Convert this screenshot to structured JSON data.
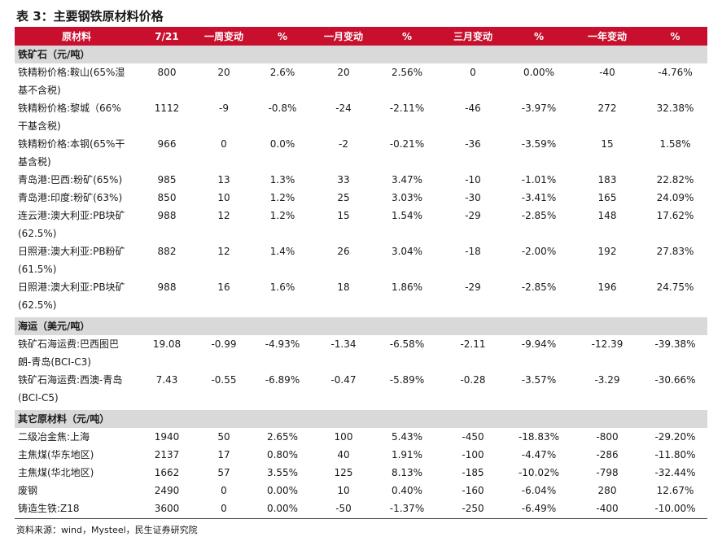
{
  "title": "表 3：主要钢铁原材料价格",
  "headers": [
    "原材料",
    "7/21",
    "一周变动",
    "%",
    "一月变动",
    "%",
    "三月变动",
    "%",
    "一年变动",
    "%"
  ],
  "sections": [
    {
      "name": "铁矿石（元/吨）",
      "rows": [
        {
          "name_lines": [
            "铁精粉价格:鞍山(65%湿",
            "基不含税)"
          ],
          "values": [
            "800",
            "20",
            "2.6%",
            "20",
            "2.56%",
            "0",
            "0.00%",
            "-40",
            "-4.76%"
          ]
        },
        {
          "name_lines": [
            "铁精粉价格:黎城（66%",
            "干基含税)"
          ],
          "values": [
            "1112",
            "-9",
            "-0.8%",
            "-24",
            "-2.11%",
            "-46",
            "-3.97%",
            "272",
            "32.38%"
          ]
        },
        {
          "name_lines": [
            "铁精粉价格:本钢(65%干",
            "基含税)"
          ],
          "values": [
            "966",
            "0",
            "0.0%",
            "-2",
            "-0.21%",
            "-36",
            "-3.59%",
            "15",
            "1.58%"
          ]
        },
        {
          "name_lines": [
            "青岛港:巴西:粉矿(65%)"
          ],
          "values": [
            "985",
            "13",
            "1.3%",
            "33",
            "3.47%",
            "-10",
            "-1.01%",
            "183",
            "22.82%"
          ]
        },
        {
          "name_lines": [
            "青岛港:印度:粉矿(63%)"
          ],
          "values": [
            "850",
            "10",
            "1.2%",
            "25",
            "3.03%",
            "-30",
            "-3.41%",
            "165",
            "24.09%"
          ]
        },
        {
          "name_lines": [
            "连云港:澳大利亚:PB块矿",
            "(62.5%)"
          ],
          "values": [
            "988",
            "12",
            "1.2%",
            "15",
            "1.54%",
            "-29",
            "-2.85%",
            "148",
            "17.62%"
          ]
        },
        {
          "name_lines": [
            "日照港:澳大利亚:PB粉矿",
            "(61.5%)"
          ],
          "values": [
            "882",
            "12",
            "1.4%",
            "26",
            "3.04%",
            "-18",
            "-2.00%",
            "192",
            "27.83%"
          ]
        },
        {
          "name_lines": [
            "日照港:澳大利亚:PB块矿",
            "(62.5%)"
          ],
          "values": [
            "988",
            "16",
            "1.6%",
            "18",
            "1.86%",
            "-29",
            "-2.85%",
            "196",
            "24.75%"
          ]
        }
      ]
    },
    {
      "name": "海运（美元/吨）",
      "rows": [
        {
          "name_lines": [
            "铁矿石海运费:巴西图巴",
            "朗-青岛(BCI-C3)"
          ],
          "values": [
            "19.08",
            "-0.99",
            "-4.93%",
            "-1.34",
            "-6.58%",
            "-2.11",
            "-9.94%",
            "-12.39",
            "-39.38%"
          ]
        },
        {
          "name_lines": [
            "铁矿石海运费:西澳-青岛",
            "(BCI-C5)"
          ],
          "values": [
            "7.43",
            "-0.55",
            "-6.89%",
            "-0.47",
            "-5.89%",
            "-0.28",
            "-3.57%",
            "-3.29",
            "-30.66%"
          ]
        }
      ]
    },
    {
      "name": "其它原材料（元/吨）",
      "rows": [
        {
          "name_lines": [
            "二级冶金焦:上海"
          ],
          "values": [
            "1940",
            "50",
            "2.65%",
            "100",
            "5.43%",
            "-450",
            "-18.83%",
            "-800",
            "-29.20%"
          ]
        },
        {
          "name_lines": [
            "主焦煤(华东地区)"
          ],
          "values": [
            "2137",
            "17",
            "0.80%",
            "40",
            "1.91%",
            "-100",
            "-4.47%",
            "-286",
            "-11.80%"
          ]
        },
        {
          "name_lines": [
            "主焦煤(华北地区)"
          ],
          "values": [
            "1662",
            "57",
            "3.55%",
            "125",
            "8.13%",
            "-185",
            "-10.02%",
            "-798",
            "-32.44%"
          ]
        },
        {
          "name_lines": [
            "废钢"
          ],
          "values": [
            "2490",
            "0",
            "0.00%",
            "10",
            "0.40%",
            "-160",
            "-6.04%",
            "280",
            "12.67%"
          ]
        },
        {
          "name_lines": [
            "铸造生铁:Z18"
          ],
          "values": [
            "3600",
            "0",
            "0.00%",
            "-50",
            "-1.37%",
            "-250",
            "-6.49%",
            "-400",
            "-10.00%"
          ]
        }
      ]
    }
  ],
  "source": "资料来源：wind，Mysteel，民生证券研究院"
}
